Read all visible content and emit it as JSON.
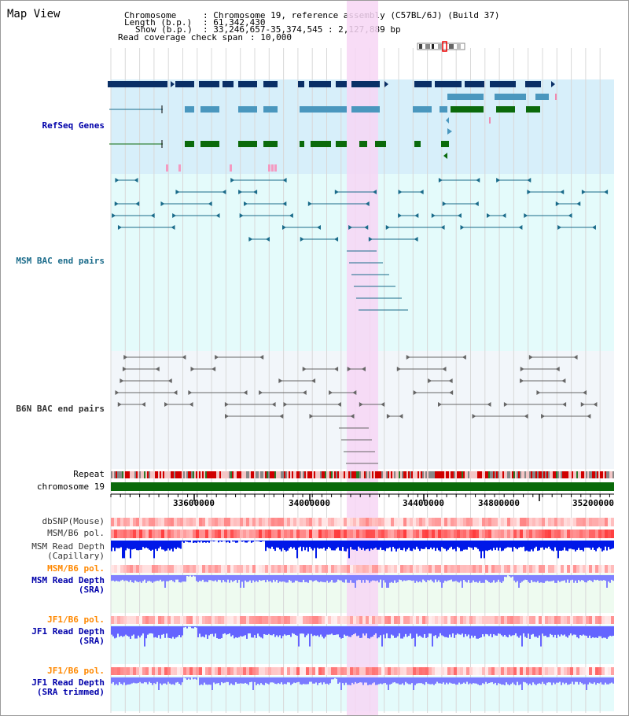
{
  "title": "Map View",
  "info": {
    "chromosome_label": "Chromosome",
    "chromosome_value": ": Chromosome 19, reference assembly (C57BL/6J) (Build 37)",
    "length_label": "Length (b.p.)",
    "length_value": ": 61,342,430",
    "show_label": "Show (b.p.)",
    "show_value": ": 33,246,657-35,374,545 : 2,127,889 bp",
    "coverage_label": "Read coverage check span",
    "coverage_value": ": 10,000"
  },
  "tracks": {
    "refseq": "RefSeq Genes",
    "msm_bac": "MSM BAC end pairs",
    "b6n_bac": "B6N BAC end pairs",
    "repeat": "Repeat",
    "chromosome": "chromosome 19",
    "dbsnp": "dbSNP(Mouse)",
    "msm_b6_pol_1": "MSM/B6 pol.",
    "msm_read_depth_cap_1": "MSM Read Depth",
    "msm_read_depth_cap_2": "(Capillary)",
    "msm_b6_pol_2": "MSM/B6 pol.",
    "msm_read_depth_sra_1": "MSM Read Depth",
    "msm_read_depth_sra_2": "(SRA)",
    "jf1_b6_pol_1": "JF1/B6 pol.",
    "jf1_read_depth_sra_1": "JF1 Read Depth",
    "jf1_read_depth_sra_2": "(SRA)",
    "jf1_b6_pol_2": "JF1/B6 pol.",
    "jf1_read_depth_trim_1": "JF1 Read Depth",
    "jf1_read_depth_trim_2": "(SRA trimmed)"
  },
  "axis": {
    "ticks": [
      "33600000",
      "34000000",
      "34400000",
      "34800000",
      "35200000"
    ]
  },
  "colors": {
    "highlight": "#f7d6f5",
    "refseq_bg": "#d7effa",
    "msm_bg": "#e4fbfb",
    "b6n_bg": "#f2f6fa",
    "gene_dark": "#0a2f66",
    "gene_mid": "#4a97be",
    "gene_green": "#0b6a0b",
    "msm_bac": "#1a6b8a",
    "b6n_bac": "#666666",
    "chromosome": "#0a6a0a",
    "label_refseq": "#0000aa",
    "label_msm": "#1a6b8a",
    "label_b6n": "#333333",
    "label_orange": "#ff8800",
    "label_blue": "#0000aa"
  }
}
